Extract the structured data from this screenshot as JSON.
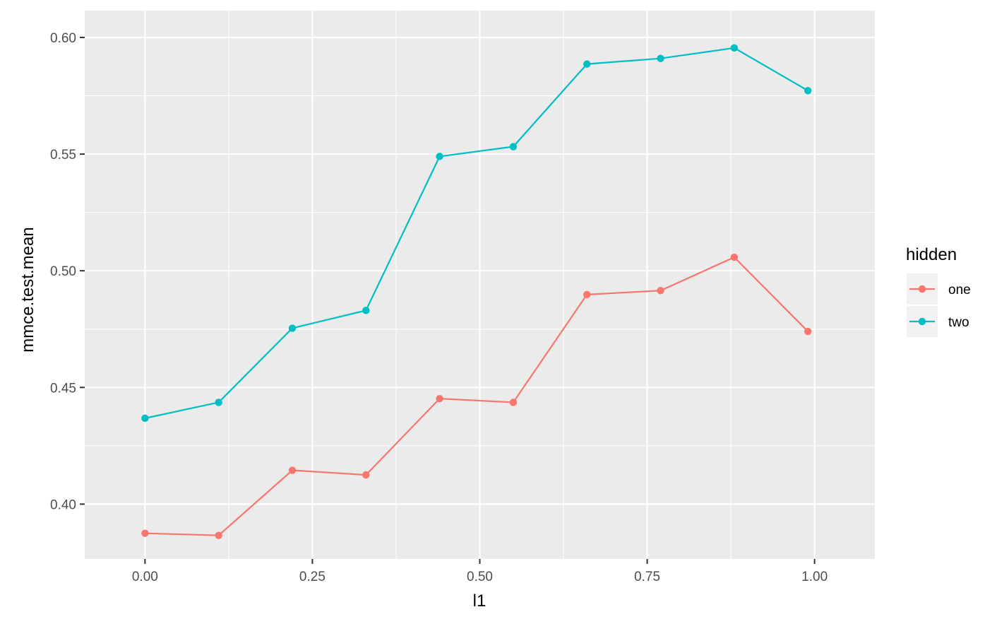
{
  "chart_data": {
    "type": "line",
    "title": "",
    "xlabel": "l1",
    "ylabel": "mmce.test.mean",
    "xlim": [
      -0.09,
      1.09
    ],
    "ylim": [
      0.3765,
      0.6115
    ],
    "x_ticks": [
      0.0,
      0.25,
      0.5,
      0.75,
      1.0
    ],
    "x_tick_labels": [
      "0.00",
      "0.25",
      "0.50",
      "0.75",
      "1.00"
    ],
    "y_ticks": [
      0.4,
      0.45,
      0.5,
      0.55,
      0.6
    ],
    "y_tick_labels": [
      "0.40",
      "0.45",
      "0.50",
      "0.55",
      "0.60"
    ],
    "grid": true,
    "legend": {
      "title": "hidden",
      "position": "right"
    },
    "x": [
      0.0,
      0.11,
      0.22,
      0.33,
      0.44,
      0.55,
      0.66,
      0.77,
      0.88,
      0.99
    ],
    "series": [
      {
        "name": "one",
        "color": "#F8766D",
        "values": [
          0.3875,
          0.3866,
          0.4145,
          0.4125,
          0.4452,
          0.4436,
          0.4898,
          0.4915,
          0.5058,
          0.474
        ]
      },
      {
        "name": "two",
        "color": "#00BFC4",
        "values": [
          0.4368,
          0.4436,
          0.4754,
          0.483,
          0.549,
          0.5532,
          0.5886,
          0.591,
          0.5955,
          0.5772
        ]
      }
    ]
  }
}
